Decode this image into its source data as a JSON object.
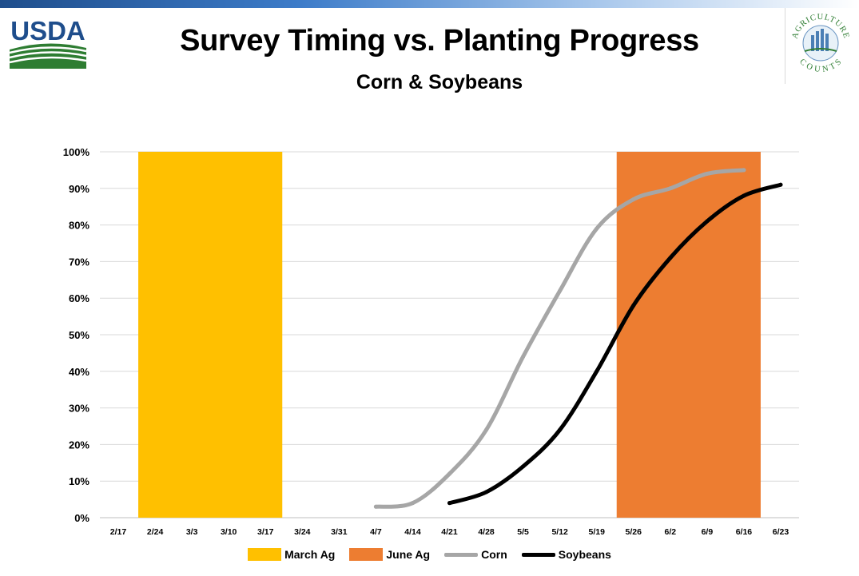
{
  "header": {
    "title": "Survey Timing vs. Planting Progress",
    "subtitle": "Corn & Soybeans",
    "logo_left": "USDA",
    "logo_right_top": "AGRICULTURE",
    "logo_right_bottom": "COUNTS"
  },
  "colors": {
    "march_ag": "#ffc000",
    "june_ag": "#ed7d31",
    "corn": "#a6a6a6",
    "soybeans": "#000000",
    "usda_blue": "#1f4e8c",
    "usda_green": "#2e7d32"
  },
  "chart_data": {
    "type": "line",
    "title": "Survey Timing vs. Planting Progress",
    "subtitle": "Corn & Soybeans",
    "categories": [
      "2/17",
      "2/24",
      "3/3",
      "3/10",
      "3/17",
      "3/24",
      "3/31",
      "4/7",
      "4/14",
      "4/21",
      "4/28",
      "5/5",
      "5/12",
      "5/19",
      "5/26",
      "6/2",
      "6/9",
      "6/16",
      "6/23"
    ],
    "y_ticks": [
      "0%",
      "10%",
      "20%",
      "30%",
      "40%",
      "50%",
      "60%",
      "70%",
      "80%",
      "90%",
      "100%"
    ],
    "ylim": [
      0,
      100
    ],
    "grid": true,
    "legend_position": "bottom",
    "bands": [
      {
        "name": "March Ag",
        "from": "2/24",
        "to": "3/17",
        "value": 100
      },
      {
        "name": "June Ag",
        "from": "5/26",
        "to": "6/16",
        "value": 100
      }
    ],
    "series": [
      {
        "name": "Corn",
        "x": [
          "4/7",
          "4/14",
          "4/21",
          "4/28",
          "5/5",
          "5/12",
          "5/19",
          "5/26",
          "6/2",
          "6/9",
          "6/16"
        ],
        "values": [
          3,
          4,
          12,
          24,
          44,
          62,
          79,
          87,
          90,
          94,
          95
        ]
      },
      {
        "name": "Soybeans",
        "x": [
          "4/21",
          "4/28",
          "5/5",
          "5/12",
          "5/19",
          "5/26",
          "6/2",
          "6/9",
          "6/16",
          "6/23"
        ],
        "values": [
          4,
          7,
          14,
          24,
          40,
          58,
          71,
          81,
          88,
          91
        ]
      }
    ],
    "legend": [
      "March Ag",
      "June Ag",
      "Corn",
      "Soybeans"
    ]
  }
}
